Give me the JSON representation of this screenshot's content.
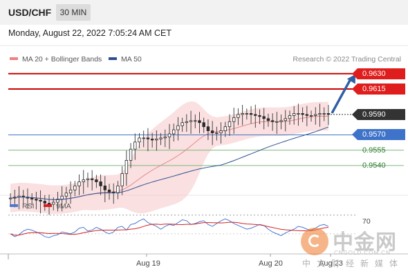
{
  "header": {
    "pair": "USD/CHF",
    "timeframe": "30 MIN"
  },
  "date": "Monday, August 22, 2022 7:05:24 AM CET",
  "legend": [
    {
      "label": "MA 20 + Bollinger Bands",
      "color": "#f08080"
    },
    {
      "label": "MA 50",
      "color": "#2b4f8f"
    }
  ],
  "credit": "Research © 2022 Trading Central",
  "levels": [
    {
      "value": "0.9630",
      "style": "flag",
      "color": "#e01d1d",
      "line": "#cc0000",
      "price": 0.963
    },
    {
      "value": "0.9615",
      "style": "flag",
      "color": "#e01d1d",
      "line": "#cc0000",
      "price": 0.9615
    },
    {
      "value": "0.9590",
      "style": "flag",
      "color": "#333333",
      "line": "#333333",
      "price": 0.959
    },
    {
      "value": "0.9570",
      "style": "flag",
      "color": "#3f73c9",
      "line": "#3f73c9",
      "price": 0.957
    },
    {
      "value": "0.9555",
      "style": "plain",
      "color": "#2e7d32",
      "line": "#7fb77e",
      "price": 0.9555
    },
    {
      "value": "0.9540",
      "style": "plain",
      "color": "#2e7d32",
      "line": "#7fb77e",
      "price": 0.954
    }
  ],
  "rsi_legend": [
    {
      "label": "RSI",
      "color": "#4a78d0"
    },
    {
      "label": "9MA",
      "color": "#d42020"
    }
  ],
  "rsi_level": "70",
  "x_ticks": [
    "Aug 19",
    "Aug 20",
    "Aug 23"
  ],
  "watermark": {
    "brand": "中金网",
    "url": "CNGOLD.COM.CN",
    "tagline": "中文财经新媒体"
  },
  "chart_data": {
    "type": "candlestick",
    "symbol": "USD/CHF",
    "interval": "30 MIN",
    "ylim": [
      0.9525,
      0.964
    ],
    "close_series": [
      0.9508,
      0.9509,
      0.951,
      0.9509,
      0.9508,
      0.9507,
      0.9506,
      0.9505,
      0.9503,
      0.9502,
      0.9504,
      0.9507,
      0.951,
      0.9513,
      0.9516,
      0.952,
      0.9524,
      0.9526,
      0.9527,
      0.9526,
      0.9524,
      0.952,
      0.9516,
      0.9514,
      0.9513,
      0.952,
      0.9532,
      0.9545,
      0.9556,
      0.9563,
      0.9567,
      0.9567,
      0.9566,
      0.9565,
      0.9566,
      0.9567,
      0.9568,
      0.9571,
      0.9575,
      0.9579,
      0.9582,
      0.9583,
      0.9584,
      0.9584,
      0.9582,
      0.9578,
      0.9574,
      0.9572,
      0.9572,
      0.9574,
      0.9578,
      0.9583,
      0.9587,
      0.959,
      0.9591,
      0.9591,
      0.959,
      0.9589,
      0.9588,
      0.9586,
      0.9584,
      0.9583,
      0.9583,
      0.9584,
      0.9586,
      0.9589,
      0.9591,
      0.9591,
      0.959,
      0.9589,
      0.9589,
      0.959,
      0.9591,
      0.9591,
      0.959
    ],
    "rsi_series": [
      50,
      47,
      49,
      53,
      55,
      54,
      52,
      50,
      47,
      46,
      48,
      49,
      52,
      51,
      50,
      52,
      56,
      57,
      53,
      54,
      57,
      55,
      52,
      50,
      52,
      57,
      58,
      54,
      60,
      61,
      64,
      66,
      62,
      60,
      58,
      55,
      58,
      60,
      59,
      62,
      65,
      64,
      60,
      61,
      63,
      64,
      60,
      58,
      61,
      64,
      66,
      64,
      61,
      59,
      57,
      55,
      56,
      58,
      60,
      59,
      55,
      52,
      50,
      48,
      51,
      53,
      55,
      58,
      57,
      55,
      54,
      56,
      59,
      60,
      58
    ],
    "projection": {
      "from": 0.959,
      "to": 0.963
    }
  }
}
